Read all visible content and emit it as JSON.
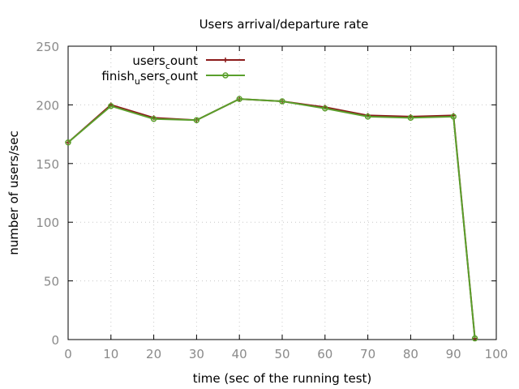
{
  "chart_data": {
    "type": "line",
    "title": "Users arrival/departure rate",
    "xlabel": "time (sec of the running test)",
    "ylabel": "number of users/sec",
    "xlim": [
      0,
      100
    ],
    "ylim": [
      0,
      250
    ],
    "xticks": [
      0,
      10,
      20,
      30,
      40,
      50,
      60,
      70,
      80,
      90,
      100
    ],
    "yticks": [
      0,
      50,
      100,
      150,
      200,
      250
    ],
    "grid": true,
    "legend_position": "top-left",
    "series": [
      {
        "name_parts": [
          "users",
          "c",
          "ount"
        ],
        "color": "#8b1a1a",
        "marker": "plus",
        "x": [
          0,
          10,
          20,
          30,
          40,
          50,
          60,
          70,
          80,
          90,
          95
        ],
        "y": [
          168,
          200,
          189,
          187,
          205,
          203,
          198,
          191,
          190,
          191,
          1
        ]
      },
      {
        "name_parts": [
          "finish",
          "u",
          "sers",
          "c",
          "ount"
        ],
        "color": "#5aa02c",
        "marker": "circle",
        "x": [
          0,
          10,
          20,
          30,
          40,
          50,
          60,
          70,
          80,
          90,
          95
        ],
        "y": [
          168,
          199,
          188,
          187,
          205,
          203,
          197,
          190,
          189,
          190,
          1
        ]
      }
    ]
  }
}
